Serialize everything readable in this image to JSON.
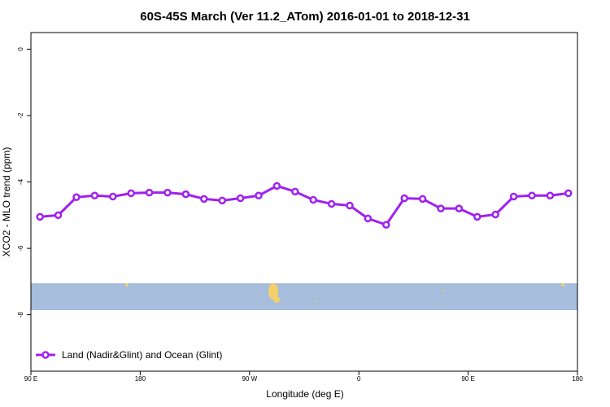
{
  "chart_data": {
    "type": "line",
    "title": "60S-45S March (Ver 11.2_ATom)   2016-01-01 to 2018-12-31",
    "x_label": "Longitude (deg E)",
    "y_label": "XCO2 - MLO trend (ppm)",
    "x": [
      97.5,
      112.5,
      127.5,
      142.5,
      157.5,
      172.5,
      187.5,
      202.5,
      217.5,
      232.5,
      247.5,
      262.5,
      277.5,
      292.5,
      307.5,
      322.5,
      337.5,
      352.5,
      367.5,
      382.5,
      397.5,
      412.5,
      427.5,
      442.5,
      457.5,
      472.5,
      487.5,
      502.5,
      517.5,
      532.5
    ],
    "series": [
      {
        "name": "Land (Nadir&Glint) and Ocean (Glint)",
        "color": "#a020f0",
        "values": [
          -5.05,
          -5.0,
          -4.46,
          -4.41,
          -4.44,
          -4.34,
          -4.32,
          -4.32,
          -4.37,
          -4.51,
          -4.56,
          -4.49,
          -4.41,
          -4.12,
          -4.29,
          -4.54,
          -4.66,
          -4.71,
          -5.1,
          -5.29,
          -4.49,
          -4.51,
          -4.8,
          -4.8,
          -5.05,
          -4.98,
          -4.44,
          -4.41,
          -4.41,
          -4.34
        ]
      }
    ],
    "xlim": [
      90,
      540
    ],
    "xticks": [
      {
        "value": 90,
        "label": "90 E"
      },
      180,
      {
        "value": 270,
        "label": "90 W"
      },
      {
        "value": 360,
        "label": "0"
      },
      {
        "value": 450,
        "label": "90 E"
      },
      {
        "value": 540,
        "label": "180"
      }
    ],
    "ylim": [
      -9.7,
      0.5
    ],
    "yticks": [
      0,
      -2,
      -4,
      -6,
      -8
    ],
    "legend": "bottomleft"
  }
}
